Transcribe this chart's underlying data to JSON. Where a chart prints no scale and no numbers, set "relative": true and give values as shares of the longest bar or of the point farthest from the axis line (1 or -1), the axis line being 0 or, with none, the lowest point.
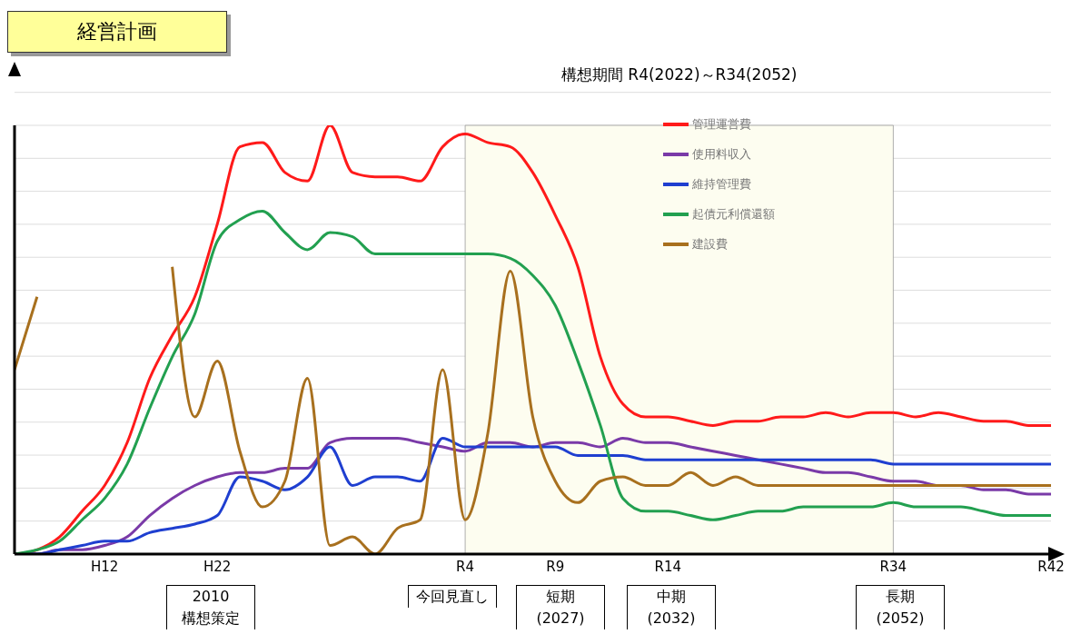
{
  "chart_data": {
    "type": "line",
    "title": "経営計画",
    "relative": true,
    "grid": "y",
    "legend": "top right",
    "categories": [
      null,
      null,
      null,
      null,
      "H12",
      null,
      null,
      null,
      null,
      "H22",
      null,
      null,
      null,
      null,
      null,
      null,
      null,
      null,
      null,
      null,
      "R4",
      null,
      null,
      null,
      "R9",
      null,
      null,
      null,
      null,
      "R14",
      null,
      null,
      null,
      null,
      null,
      null,
      null,
      null,
      null,
      "R34",
      null,
      null,
      null,
      null,
      null,
      null,
      "R42"
    ],
    "series": [
      {
        "name": "管理運営費",
        "color": "#ff1a1a",
        "values": [
          0.0,
          0.01,
          0.04,
          0.1,
          0.16,
          0.26,
          0.41,
          0.51,
          0.6,
          0.77,
          0.95,
          0.96,
          0.89,
          0.87,
          1.0,
          0.89,
          0.88,
          0.88,
          0.87,
          0.95,
          0.98,
          0.96,
          0.95,
          0.89,
          0.79,
          0.67,
          0.46,
          0.35,
          0.32,
          0.32,
          0.31,
          0.3,
          0.31,
          0.31,
          0.32,
          0.32,
          0.33,
          0.32,
          0.33,
          0.33,
          0.32,
          0.33,
          0.32,
          0.31,
          0.31,
          0.3,
          0.3
        ]
      },
      {
        "name": "使用料収入",
        "color": "#7a3aa8",
        "values": [
          0.0,
          0.0,
          0.01,
          0.01,
          0.02,
          0.04,
          0.09,
          0.13,
          0.16,
          0.18,
          0.19,
          0.19,
          0.2,
          0.2,
          0.26,
          0.27,
          0.27,
          0.27,
          0.26,
          0.25,
          0.24,
          0.26,
          0.26,
          0.25,
          0.26,
          0.26,
          0.25,
          0.27,
          0.26,
          0.26,
          0.25,
          0.24,
          0.23,
          0.22,
          0.21,
          0.2,
          0.19,
          0.19,
          0.18,
          0.17,
          0.17,
          0.16,
          0.16,
          0.15,
          0.15,
          0.14,
          0.14
        ]
      },
      {
        "name": "維持管理費",
        "color": "#1f3fd0",
        "values": [
          0.0,
          0.0,
          0.01,
          0.02,
          0.03,
          0.03,
          0.05,
          0.06,
          0.07,
          0.09,
          0.18,
          0.17,
          0.15,
          0.18,
          0.25,
          0.16,
          0.18,
          0.18,
          0.17,
          0.27,
          0.25,
          0.25,
          0.25,
          0.25,
          0.25,
          0.23,
          0.23,
          0.23,
          0.22,
          0.22,
          0.22,
          0.22,
          0.22,
          0.22,
          0.22,
          0.22,
          0.22,
          0.22,
          0.22,
          0.21,
          0.21,
          0.21,
          0.21,
          0.21,
          0.21,
          0.21,
          0.21
        ]
      },
      {
        "name": "起債元利償還額",
        "color": "#22a050",
        "values": [
          0.0,
          0.01,
          0.03,
          0.08,
          0.13,
          0.21,
          0.34,
          0.46,
          0.56,
          0.73,
          0.78,
          0.8,
          0.75,
          0.71,
          0.75,
          0.74,
          0.7,
          0.7,
          0.7,
          0.7,
          0.7,
          0.7,
          0.69,
          0.65,
          0.58,
          0.45,
          0.3,
          0.13,
          0.1,
          0.1,
          0.09,
          0.08,
          0.09,
          0.1,
          0.1,
          0.11,
          0.11,
          0.11,
          0.11,
          0.12,
          0.11,
          0.11,
          0.11,
          0.1,
          0.09,
          0.09,
          0.09
        ]
      },
      {
        "name": "建設費",
        "color": "#a8701e",
        "values": [
          0.43,
          0.6,
          null,
          null,
          null,
          null,
          null,
          0.67,
          0.32,
          0.45,
          0.24,
          0.11,
          0.17,
          0.41,
          0.02,
          0.04,
          0.0,
          0.06,
          0.08,
          0.43,
          0.08,
          0.28,
          0.66,
          0.32,
          0.17,
          0.12,
          0.17,
          0.18,
          0.16,
          0.16,
          0.19,
          0.16,
          0.18,
          0.16,
          0.16,
          0.16,
          0.16,
          0.16,
          0.16,
          0.16,
          0.16,
          0.16,
          0.16,
          0.16,
          0.16,
          0.16,
          0.16
        ]
      }
    ],
    "bands": [
      {
        "axis": "x",
        "from": "R4",
        "to": "R34",
        "label": "構想期間 R4(2022)～R34(2052)",
        "color": "#fdfdf0"
      }
    ],
    "annotations": [
      "2010構想策定",
      "今回見直し",
      "短期(2027)",
      "中期(2032)",
      "長期(2052)"
    ]
  }
}
